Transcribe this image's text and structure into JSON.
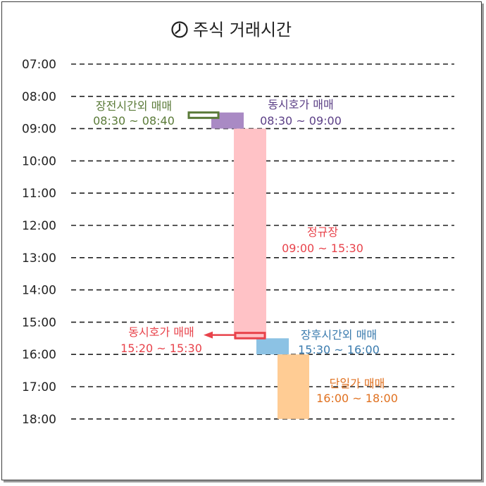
{
  "title": "주식 거래시간",
  "icon": "clock-icon",
  "hours": [
    "07:00",
    "08:00",
    "09:00",
    "10:00",
    "11:00",
    "12:00",
    "13:00",
    "14:00",
    "15:00",
    "16:00",
    "17:00",
    "18:00"
  ],
  "sessions": [
    {
      "id": "pre-market-off-hours",
      "name": "장전시간외 매매",
      "time": "08:30 ~ 08:40",
      "start": 8.5,
      "end": 8.667,
      "color": "#5a7a38",
      "fill": "#ffffff",
      "style": "outline"
    },
    {
      "id": "opening-call-auction",
      "name": "동시호가 매매",
      "time": "08:30 ~ 09:00",
      "start": 8.5,
      "end": 9.0,
      "color": "#5b3f86",
      "fill": "#a98ac4",
      "style": "bar"
    },
    {
      "id": "regular-session",
      "name": "정규장",
      "time": "09:00 ~ 15:30",
      "start": 9.0,
      "end": 15.5,
      "color": "#e8434b",
      "fill": "#ffc2c6",
      "style": "bar"
    },
    {
      "id": "closing-call-auction",
      "name": "동시호가 매매",
      "time": "15:20 ~ 15:30",
      "start": 15.333,
      "end": 15.5,
      "color": "#e8434b",
      "fill": "#ffc2c6",
      "style": "outline"
    },
    {
      "id": "after-hours-closing",
      "name": "장후시간외 매매",
      "time": "15:30 ~ 16:00",
      "start": 15.5,
      "end": 16.0,
      "color": "#3a7bae",
      "fill": "#8cc2e4",
      "style": "bar"
    },
    {
      "id": "single-price-trading",
      "name": "단일가 매매",
      "time": "16:00 ~ 18:00",
      "start": 16.0,
      "end": 18.0,
      "color": "#e07120",
      "fill": "#ffcc94",
      "style": "bar"
    }
  ]
}
